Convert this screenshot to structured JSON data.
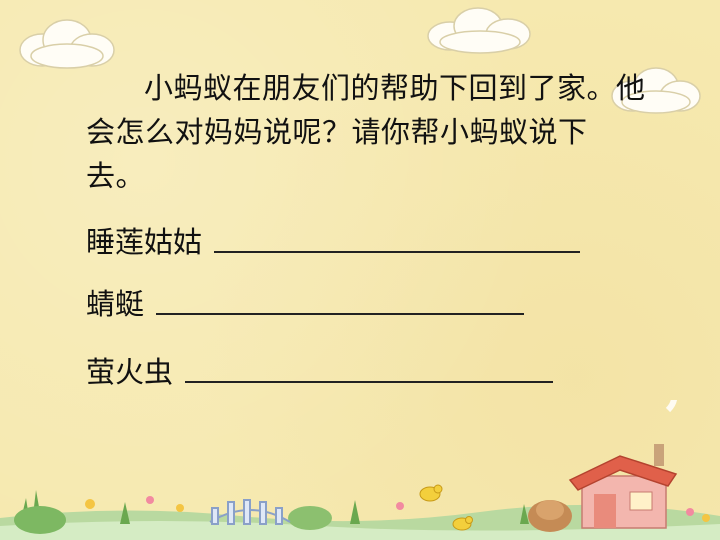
{
  "passage": "小蚂蚁在朋友们的帮助下回到了家。他会怎么对妈妈说呢？请你帮小蚂蚁说下去。",
  "prompts": [
    {
      "label": "睡莲姑姑"
    },
    {
      "label": "蜻蜓"
    },
    {
      "label": "萤火虫"
    }
  ],
  "icons": [
    "cloud-icon",
    "house-icon",
    "bird-icon",
    "fence-icon",
    "flower-icon",
    "grass-icon"
  ],
  "colors": {
    "background": "#f6e9af",
    "text": "#111111",
    "roof": "#e0604a",
    "house_wall": "#f3b6ae"
  }
}
